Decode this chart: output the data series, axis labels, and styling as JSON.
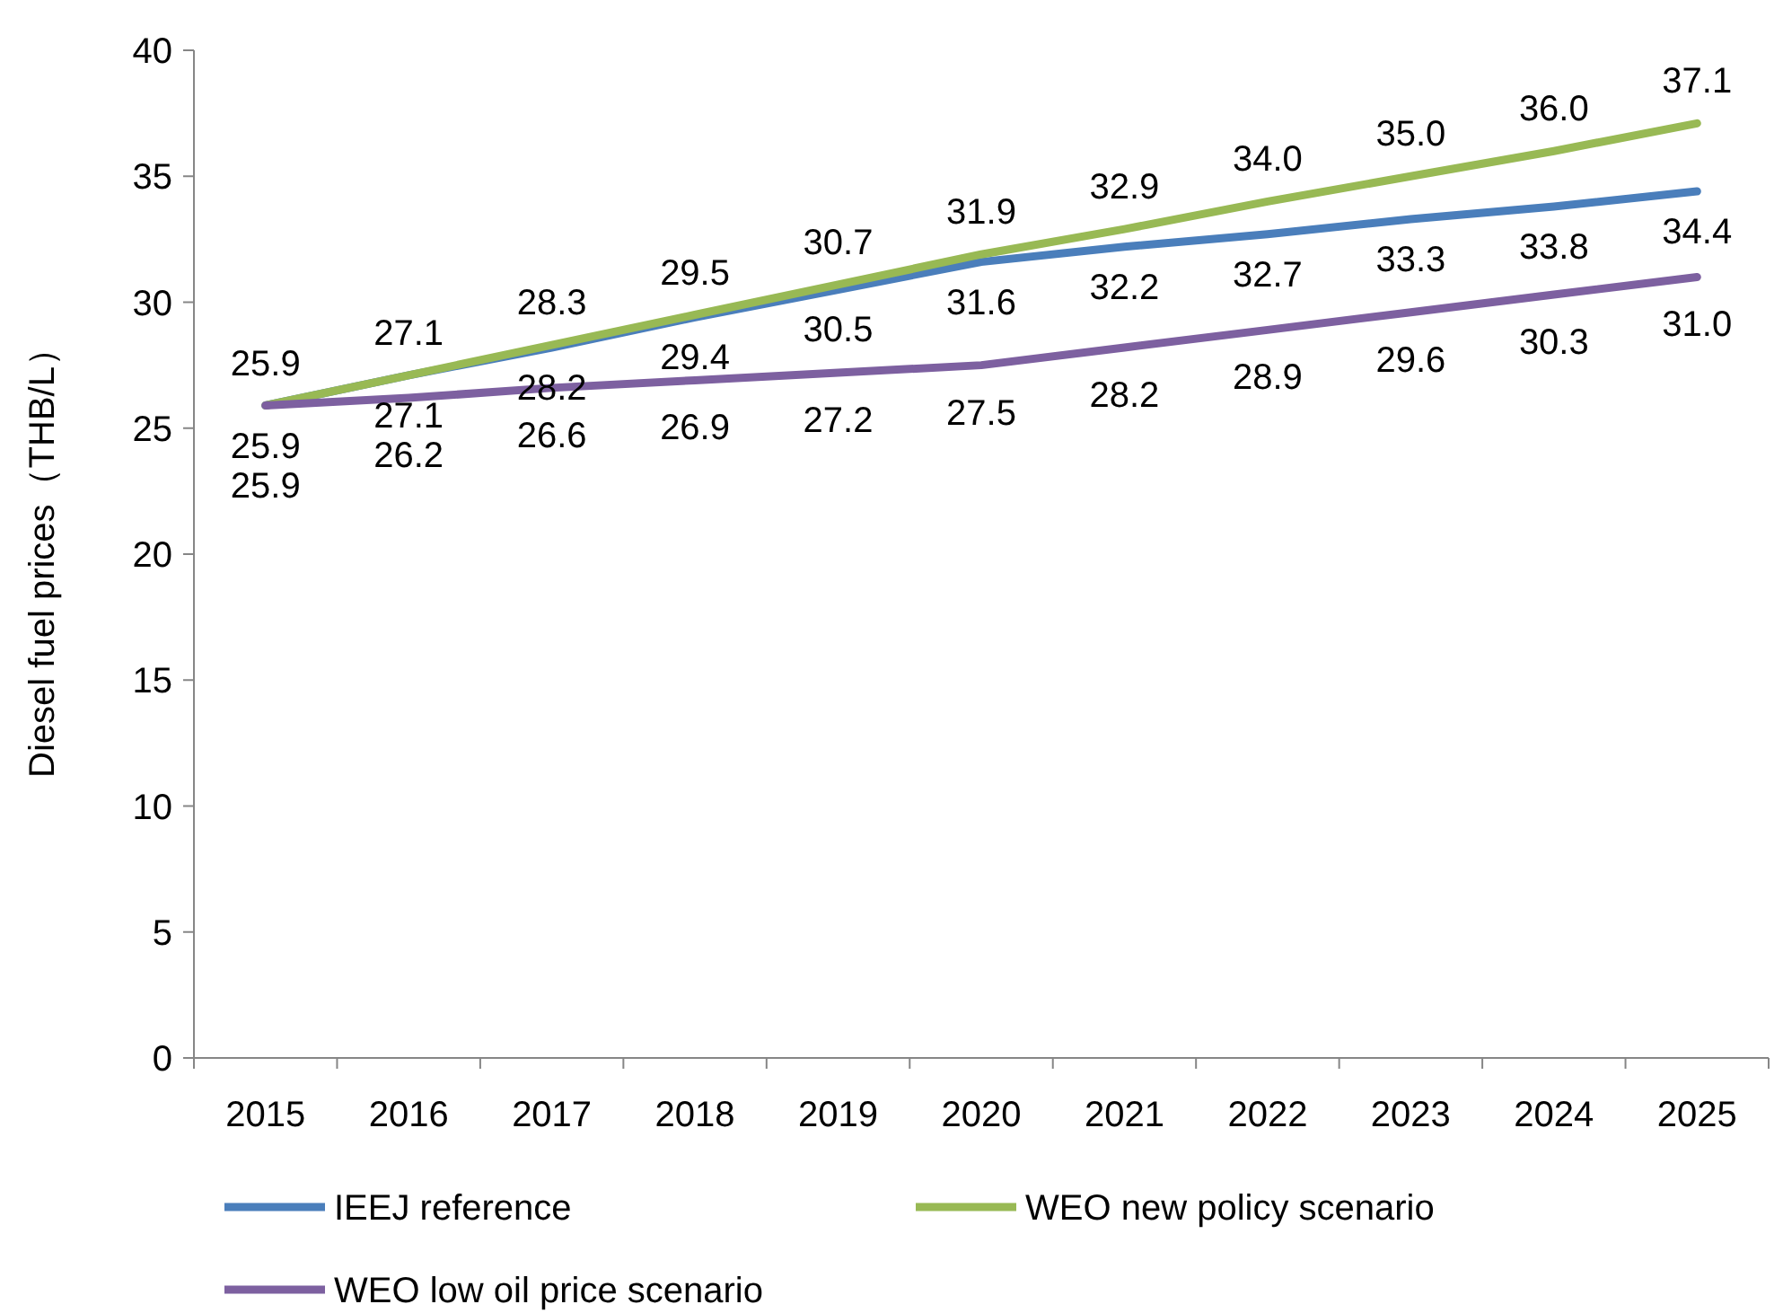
{
  "chart_data": {
    "type": "line",
    "ylabel": "Diesel fuel prices（THB/L）",
    "categories": [
      "2015",
      "2016",
      "2017",
      "2018",
      "2019",
      "2020",
      "2021",
      "2022",
      "2023",
      "2024",
      "2025"
    ],
    "series": [
      {
        "name": "IEEJ reference",
        "color": "#4a7ebb",
        "values": [
          25.9,
          27.1,
          28.2,
          29.4,
          30.5,
          31.6,
          32.2,
          32.7,
          33.3,
          33.8,
          34.4
        ],
        "value_labels": [
          "25.9",
          "27.1",
          "28.2",
          "29.4",
          "30.5",
          "31.6",
          "32.2",
          "32.7",
          "33.3",
          "33.8",
          "34.4"
        ]
      },
      {
        "name": "WEO new policy scenario",
        "color": "#98b954",
        "values": [
          25.9,
          27.1,
          28.3,
          29.5,
          30.7,
          31.9,
          32.9,
          34.0,
          35.0,
          36.0,
          37.1
        ],
        "value_labels": [
          "25.9",
          "27.1",
          "28.3",
          "29.5",
          "30.7",
          "31.9",
          "32.9",
          "34.0",
          "35.0",
          "36.0",
          "37.1"
        ]
      },
      {
        "name": "WEO low oil price scenario",
        "color": "#7d60a0",
        "values": [
          25.9,
          26.2,
          26.6,
          26.9,
          27.2,
          27.5,
          28.2,
          28.9,
          29.6,
          30.3,
          31.0
        ],
        "value_labels": [
          "25.9",
          "26.2",
          "26.6",
          "26.9",
          "27.2",
          "27.5",
          "28.2",
          "28.9",
          "29.6",
          "30.3",
          "31.0"
        ]
      }
    ],
    "ylim": [
      0,
      40
    ],
    "yticks": [
      0,
      5,
      10,
      15,
      20,
      25,
      30,
      35,
      40
    ],
    "legend": "bottom",
    "grid": false,
    "marker": "none",
    "line_style": "solid"
  }
}
